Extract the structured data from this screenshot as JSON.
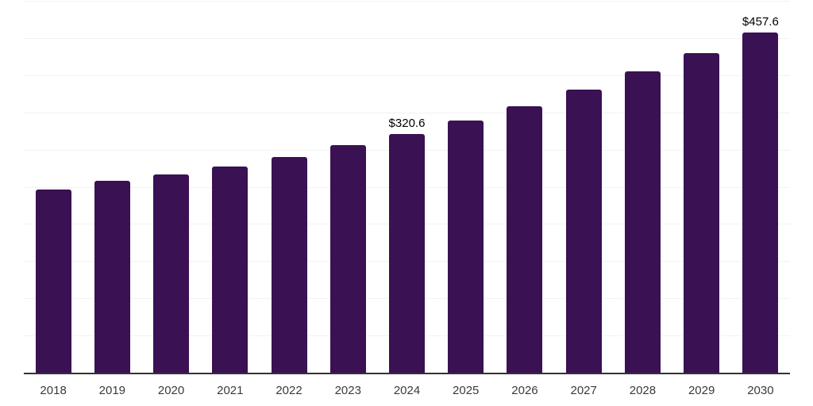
{
  "chart_data": {
    "type": "bar",
    "title": "",
    "xlabel": "",
    "ylabel": "",
    "categories": [
      "2018",
      "2019",
      "2020",
      "2021",
      "2022",
      "2023",
      "2024",
      "2025",
      "2026",
      "2027",
      "2028",
      "2029",
      "2030"
    ],
    "values": [
      246.0,
      258.4,
      266.9,
      277.7,
      289.8,
      305.8,
      320.6,
      339.2,
      358.4,
      380.8,
      404.9,
      429.9,
      457.6
    ],
    "value_labels": {
      "2024": "$320.6",
      "2030": "$457.6"
    },
    "ylim": [
      0,
      500
    ],
    "grid_interval": 50,
    "grid": "horizontal",
    "legend": "none",
    "y_axis_tick_labels_visible": false,
    "colors": {
      "bar": "#3A1153",
      "gridline": "#f2f2f2",
      "axis_line": "#333333",
      "x_tick_label": "#3a3a3a",
      "value_label": "#000000",
      "background": "#ffffff"
    }
  }
}
